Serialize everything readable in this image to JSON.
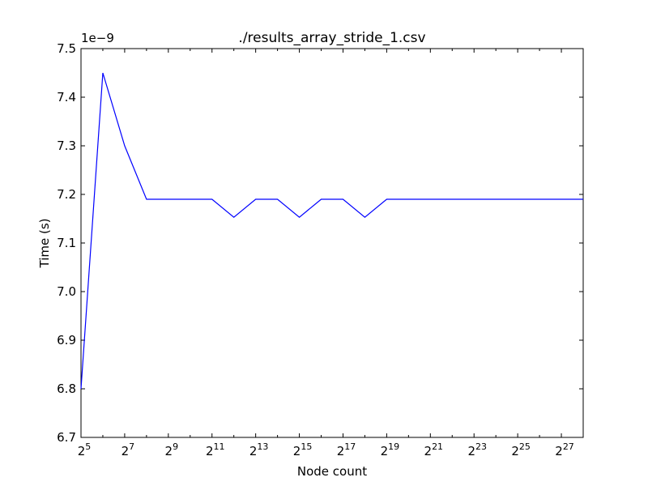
{
  "chart_data": {
    "type": "line",
    "title": "./results_array_stride_1.csv",
    "xlabel": "Node count",
    "ylabel": "Time (s)",
    "x_scale": "log2",
    "x_tick_base": "2",
    "x_tick_exponents": [
      "5",
      "7",
      "9",
      "11",
      "13",
      "15",
      "17",
      "19",
      "21",
      "23",
      "25",
      "27"
    ],
    "xlim": [
      32,
      268435456
    ],
    "ylim": [
      6.7,
      7.5
    ],
    "y_offset_label": "1e−9",
    "y_ticks": [
      "6.7",
      "6.8",
      "6.9",
      "7.0",
      "7.1",
      "7.2",
      "7.3",
      "7.4",
      "7.5"
    ],
    "grid": false,
    "series": [
      {
        "color": "#0000ff",
        "x": [
          32,
          64,
          128,
          256,
          512,
          1024,
          2048,
          4096,
          8192,
          16384,
          32768,
          65536,
          131072,
          262144,
          524288,
          1048576,
          2097152,
          4194304,
          8388608,
          16777216,
          33554432,
          67108864,
          134217728,
          268435456
        ],
        "y": [
          6.8,
          7.45,
          7.3,
          7.19,
          7.19,
          7.19,
          7.19,
          7.153,
          7.19,
          7.19,
          7.153,
          7.19,
          7.19,
          7.153,
          7.19,
          7.19,
          7.19,
          7.19,
          7.19,
          7.19,
          7.19,
          7.19,
          7.19,
          7.19
        ]
      }
    ]
  }
}
